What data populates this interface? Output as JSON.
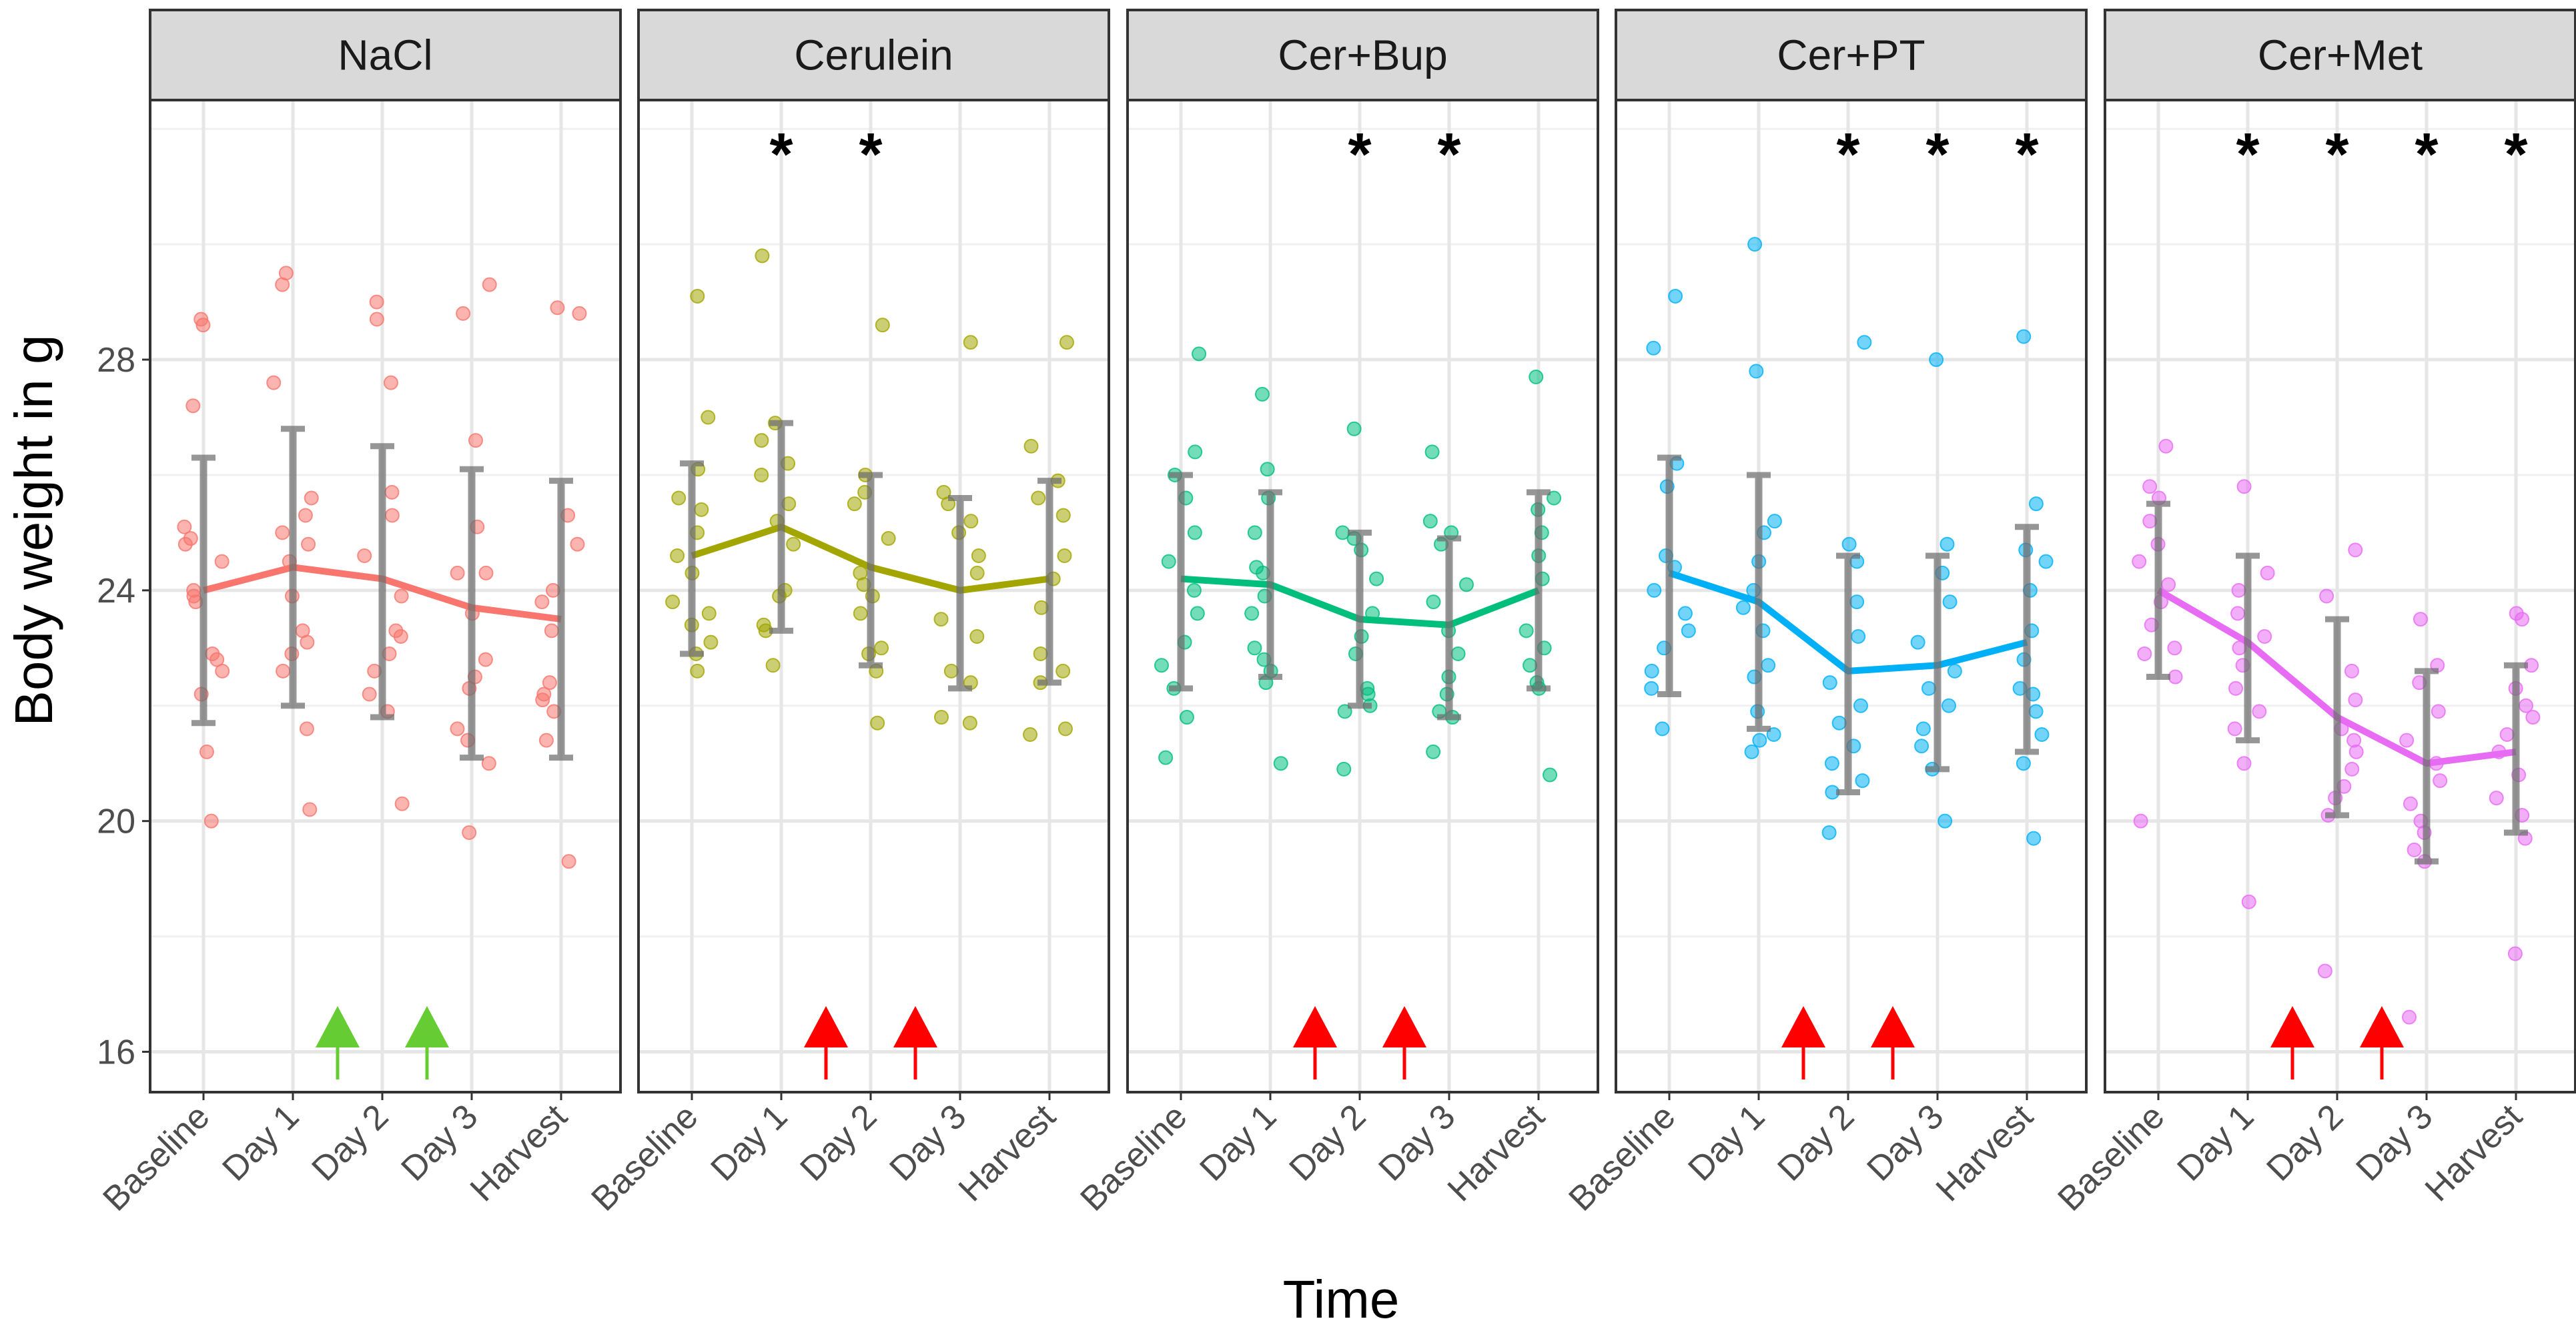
{
  "chart_data": {
    "type": "line",
    "title": "",
    "xlabel": "Time",
    "ylabel": "Body weight in g",
    "categories": [
      "Baseline",
      "Day 1",
      "Day 2",
      "Day 3",
      "Harvest"
    ],
    "ylim": [
      15.3,
      32.5
    ],
    "yticks": [
      16,
      20,
      24,
      28
    ],
    "grid": true,
    "legend": "none",
    "significance_marker": "*",
    "panels": [
      {
        "name": "NaCl",
        "color": "#F8766D",
        "mean": [
          24.0,
          24.4,
          24.2,
          23.7,
          23.5
        ],
        "lower": [
          21.7,
          22.0,
          21.8,
          21.1,
          21.1
        ],
        "upper": [
          26.3,
          26.8,
          26.5,
          26.1,
          25.9
        ],
        "significant": [
          false,
          false,
          false,
          false,
          false
        ],
        "arrow_color": "#66CC33",
        "points": [
          [
            28.7,
            28.6,
            27.2,
            25.1,
            24.9,
            24.8,
            24.5,
            24.0,
            23.9,
            23.8,
            22.9,
            22.8,
            22.6,
            22.2,
            21.2,
            20.0
          ],
          [
            29.3,
            29.5,
            27.6,
            25.6,
            25.3,
            25.0,
            24.8,
            24.5,
            23.9,
            23.3,
            23.1,
            22.9,
            22.6,
            21.6,
            20.2
          ],
          [
            28.7,
            29.0,
            27.6,
            25.7,
            25.3,
            24.6,
            23.9,
            23.3,
            23.2,
            22.9,
            22.6,
            22.2,
            21.9,
            20.3
          ],
          [
            29.3,
            28.8,
            26.6,
            25.1,
            24.3,
            24.3,
            23.6,
            22.8,
            22.5,
            22.3,
            21.6,
            21.4,
            21.0,
            19.8
          ],
          [
            28.8,
            28.9,
            25.3,
            24.8,
            24.0,
            23.8,
            23.3,
            22.4,
            22.2,
            22.1,
            21.9,
            21.4,
            19.3
          ]
        ]
      },
      {
        "name": "Cerulein",
        "color": "#A3A500",
        "mean": [
          24.6,
          25.1,
          24.4,
          24.0,
          24.2
        ],
        "lower": [
          22.9,
          23.3,
          22.7,
          22.3,
          22.4
        ],
        "upper": [
          26.2,
          26.9,
          26.0,
          25.6,
          25.9
        ],
        "significant": [
          false,
          true,
          true,
          false,
          false
        ],
        "arrow_color": "#FF0000",
        "points": [
          [
            29.1,
            27.0,
            26.1,
            25.6,
            25.4,
            25.0,
            24.6,
            24.3,
            23.8,
            23.6,
            23.4,
            23.1,
            22.9,
            22.6
          ],
          [
            29.8,
            26.9,
            26.6,
            26.2,
            26.0,
            25.5,
            25.2,
            24.8,
            24.0,
            23.9,
            23.4,
            23.3,
            22.7
          ],
          [
            28.6,
            26.0,
            25.7,
            25.5,
            24.9,
            24.3,
            24.1,
            23.9,
            23.6,
            23.0,
            22.9,
            22.6,
            21.7
          ],
          [
            28.3,
            25.7,
            25.5,
            25.2,
            25.0,
            24.6,
            24.3,
            23.5,
            23.2,
            22.6,
            22.4,
            21.8,
            21.7
          ],
          [
            28.3,
            26.5,
            25.9,
            25.6,
            25.3,
            24.6,
            24.2,
            23.7,
            22.9,
            22.6,
            22.4,
            21.6,
            21.5
          ]
        ]
      },
      {
        "name": "Cer+Bup",
        "color": "#00BF7D",
        "mean": [
          24.2,
          24.1,
          23.5,
          23.4,
          24.0
        ],
        "lower": [
          22.3,
          22.5,
          22.0,
          21.8,
          22.3
        ],
        "upper": [
          26.0,
          25.7,
          25.0,
          24.9,
          25.7
        ],
        "significant": [
          false,
          false,
          true,
          true,
          false
        ],
        "arrow_color": "#FF0000",
        "points": [
          [
            28.1,
            26.4,
            26.0,
            25.6,
            25.0,
            24.5,
            24.0,
            23.6,
            23.1,
            22.7,
            22.3,
            21.8,
            21.1
          ],
          [
            27.4,
            26.1,
            25.6,
            25.0,
            24.4,
            24.3,
            23.9,
            23.6,
            23.0,
            22.8,
            22.6,
            22.4,
            21.0
          ],
          [
            26.8,
            25.0,
            24.9,
            24.7,
            24.2,
            23.6,
            23.2,
            22.9,
            22.3,
            22.2,
            22.0,
            21.9,
            20.9
          ],
          [
            26.4,
            25.2,
            25.0,
            24.8,
            24.1,
            23.8,
            23.3,
            22.9,
            22.5,
            22.2,
            21.9,
            21.8,
            21.2
          ],
          [
            27.7,
            25.6,
            25.4,
            25.0,
            24.6,
            24.2,
            23.3,
            23.0,
            22.7,
            22.4,
            22.3,
            20.8
          ]
        ]
      },
      {
        "name": "Cer+PT",
        "color": "#00B0F6",
        "mean": [
          24.3,
          23.8,
          22.6,
          22.7,
          23.1
        ],
        "lower": [
          22.2,
          21.6,
          20.5,
          20.9,
          21.2
        ],
        "upper": [
          26.3,
          26.0,
          24.6,
          24.6,
          25.1
        ],
        "significant": [
          false,
          false,
          true,
          true,
          true
        ],
        "arrow_color": "#FF0000",
        "points": [
          [
            29.1,
            28.2,
            26.2,
            25.8,
            24.6,
            24.4,
            24.0,
            23.6,
            23.3,
            23.0,
            22.6,
            22.3,
            21.6
          ],
          [
            30.0,
            27.8,
            25.2,
            25.0,
            24.5,
            24.0,
            23.7,
            23.3,
            22.7,
            22.5,
            21.9,
            21.5,
            21.4,
            21.2
          ],
          [
            28.3,
            24.8,
            24.5,
            23.8,
            23.2,
            22.4,
            22.0,
            21.7,
            21.3,
            21.0,
            20.7,
            20.5,
            19.8
          ],
          [
            28.0,
            24.8,
            24.3,
            23.8,
            23.1,
            22.6,
            22.3,
            22.0,
            21.6,
            21.3,
            20.9,
            20.0
          ],
          [
            28.4,
            25.5,
            24.7,
            24.5,
            24.0,
            23.3,
            22.8,
            22.3,
            22.2,
            21.9,
            21.5,
            21.0,
            19.7
          ]
        ]
      },
      {
        "name": "Cer+Met",
        "color": "#E76BF3",
        "mean": [
          24.0,
          23.1,
          21.8,
          21.0,
          21.2
        ],
        "lower": [
          22.5,
          21.4,
          20.1,
          19.3,
          19.8
        ],
        "upper": [
          25.5,
          24.6,
          23.5,
          22.6,
          22.7
        ],
        "significant": [
          false,
          true,
          true,
          true,
          true
        ],
        "arrow_color": "#FF0000",
        "points": [
          [
            26.5,
            25.8,
            25.6,
            25.2,
            24.8,
            24.5,
            24.1,
            23.8,
            23.4,
            23.0,
            22.9,
            22.5,
            20.0
          ],
          [
            25.8,
            24.3,
            24.0,
            23.6,
            23.2,
            23.0,
            22.7,
            22.3,
            21.9,
            21.6,
            21.0,
            18.6
          ],
          [
            24.7,
            23.9,
            22.6,
            22.1,
            21.6,
            21.4,
            21.2,
            20.9,
            20.6,
            20.4,
            20.1,
            17.4
          ],
          [
            23.5,
            22.7,
            22.4,
            21.9,
            21.4,
            21.0,
            20.7,
            20.3,
            20.0,
            19.8,
            19.5,
            19.3,
            16.6
          ],
          [
            23.6,
            23.5,
            22.7,
            22.3,
            22.0,
            21.8,
            21.5,
            21.2,
            20.8,
            20.4,
            20.1,
            19.7,
            17.7
          ]
        ]
      }
    ]
  }
}
